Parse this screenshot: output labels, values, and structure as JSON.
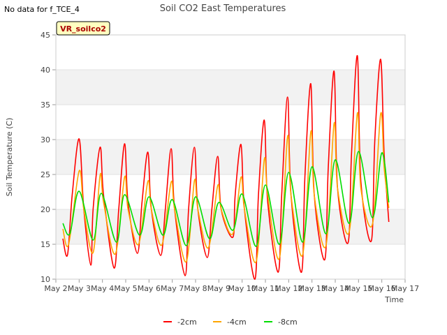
{
  "no_data_note": "No data for f_TCE_4",
  "chart_data": {
    "type": "line",
    "title": "Soil CO2 East Temperatures",
    "xlabel": "Time",
    "ylabel": "Soil Temperature (C)",
    "ylim": [
      10,
      45
    ],
    "yticks": [
      10,
      15,
      20,
      25,
      30,
      35,
      40,
      45
    ],
    "xlim": [
      2,
      17
    ],
    "xticks": [
      2,
      3,
      4,
      5,
      6,
      7,
      8,
      9,
      10,
      11,
      12,
      13,
      14,
      15,
      16,
      17
    ],
    "xtick_labels": [
      "May 2",
      "May 3",
      "May 4",
      "May 5",
      "May 6",
      "May 7",
      "May 8",
      "May 9",
      "May 10",
      "May 11",
      "May 12",
      "May 13",
      "May 14",
      "May 15",
      "May 16",
      "May 17"
    ],
    "grid": "horizontal bands",
    "legend_position": "bottom-center",
    "station_label": "VR_soilco2",
    "series": [
      {
        "name": "-2cm",
        "color": "#ff0000",
        "x": [
          2.3,
          2.5,
          2.7,
          3.0,
          3.2,
          3.5,
          3.6,
          3.9,
          4.05,
          4.5,
          4.7,
          4.95,
          5.1,
          5.5,
          5.7,
          5.95,
          6.1,
          6.5,
          6.7,
          6.95,
          7.1,
          7.55,
          7.7,
          7.95,
          8.1,
          8.5,
          8.7,
          8.95,
          9.1,
          9.6,
          9.7,
          9.95,
          10.1,
          10.55,
          10.7,
          10.95,
          11.1,
          11.55,
          11.7,
          11.95,
          12.1,
          12.55,
          12.7,
          12.95,
          13.1,
          13.55,
          13.7,
          13.95,
          14.1,
          14.55,
          14.7,
          14.95,
          15.1,
          15.55,
          15.7,
          15.95,
          16.1,
          16.3
        ],
        "values": [
          15.8,
          13.5,
          22.0,
          30.1,
          20.0,
          12.0,
          20.0,
          28.9,
          22.0,
          11.6,
          20.0,
          29.4,
          21.0,
          13.7,
          21.0,
          28.2,
          20.0,
          13.4,
          20.0,
          28.7,
          20.0,
          10.5,
          20.0,
          28.9,
          20.0,
          13.1,
          20.0,
          27.6,
          20.0,
          16.0,
          22.0,
          29.3,
          20.0,
          10.0,
          22.0,
          32.8,
          21.0,
          11.0,
          22.0,
          36.1,
          22.0,
          11.0,
          25.0,
          38.0,
          22.0,
          12.8,
          26.0,
          39.8,
          23.0,
          15.2,
          28.0,
          42.0,
          24.0,
          15.5,
          30.0,
          41.5,
          28.0,
          18.2
        ]
      },
      {
        "name": "-4cm",
        "color": "#ffa500",
        "x": [
          2.3,
          2.55,
          3.0,
          3.2,
          3.6,
          3.9,
          4.05,
          4.55,
          4.95,
          5.1,
          5.55,
          5.95,
          6.1,
          6.55,
          6.95,
          7.1,
          7.6,
          7.95,
          8.1,
          8.55,
          8.95,
          9.1,
          9.6,
          9.95,
          10.1,
          10.6,
          10.95,
          11.1,
          11.6,
          11.95,
          12.1,
          12.6,
          12.95,
          13.1,
          13.6,
          13.95,
          14.1,
          14.6,
          14.95,
          15.1,
          15.6,
          15.95,
          16.1,
          16.3
        ],
        "values": [
          17.2,
          15.0,
          25.5,
          20.0,
          13.8,
          24.9,
          21.0,
          13.6,
          24.6,
          20.0,
          15.0,
          24.0,
          20.0,
          14.9,
          23.9,
          20.0,
          12.5,
          24.1,
          20.0,
          14.5,
          23.4,
          20.0,
          16.5,
          24.6,
          20.0,
          12.5,
          27.1,
          22.0,
          13.0,
          30.4,
          22.0,
          13.5,
          31.1,
          22.0,
          14.8,
          32.3,
          23.0,
          16.8,
          33.8,
          23.0,
          17.9,
          33.7,
          26.0,
          20.2
        ]
      },
      {
        "name": "-8cm",
        "color": "#00dd00",
        "x": [
          2.3,
          2.6,
          3.0,
          3.6,
          3.95,
          4.6,
          4.95,
          5.6,
          6.0,
          6.6,
          7.0,
          7.6,
          8.0,
          8.6,
          9.0,
          9.6,
          10.0,
          10.6,
          11.0,
          11.6,
          12.0,
          12.6,
          13.0,
          13.6,
          14.0,
          14.6,
          15.0,
          15.6,
          16.0,
          16.3
        ],
        "values": [
          18.0,
          16.5,
          22.6,
          15.6,
          22.3,
          15.3,
          22.1,
          16.3,
          21.8,
          16.3,
          21.4,
          14.8,
          21.8,
          15.8,
          21.0,
          17.0,
          22.2,
          14.7,
          23.5,
          15.0,
          25.3,
          15.3,
          26.1,
          16.5,
          27.1,
          18.0,
          28.3,
          18.8,
          28.1,
          21.0
        ]
      }
    ]
  }
}
